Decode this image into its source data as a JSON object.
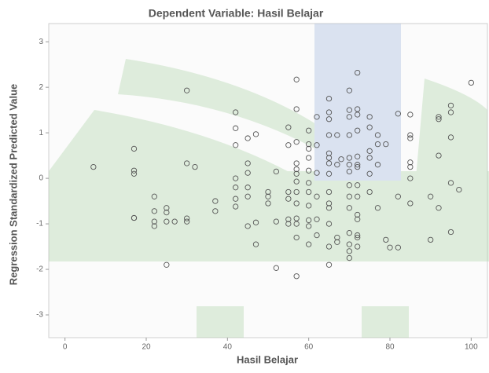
{
  "chart_data": {
    "type": "scatter",
    "title": "Dependent Variable: Hasil Belajar",
    "x_label": "Hasil Belajar",
    "y_label": "Regression Standardized Predicted Value",
    "x": [
      7,
      17,
      17,
      17,
      17,
      17,
      22,
      22,
      22,
      22,
      25,
      25,
      25,
      25,
      27,
      30,
      30,
      30,
      30,
      32,
      37,
      37,
      42,
      42,
      42,
      42,
      42,
      42,
      42,
      45,
      45,
      45,
      45,
      45,
      45,
      47,
      47,
      47,
      50,
      50,
      50,
      52,
      52,
      52,
      55,
      55,
      55,
      55,
      55,
      55,
      57,
      57,
      57,
      57,
      57,
      57,
      57,
      57,
      57,
      57,
      57,
      57,
      57,
      60,
      60,
      60,
      60,
      60,
      60,
      60,
      60,
      60,
      60,
      60,
      62,
      62,
      62,
      62,
      62,
      62,
      65,
      65,
      65,
      65,
      65,
      65,
      65,
      65,
      65,
      65,
      65,
      65,
      65,
      65,
      67,
      67,
      67,
      67,
      68,
      70,
      70,
      70,
      70,
      70,
      70,
      70,
      70,
      70,
      70,
      70,
      70,
      70,
      70,
      72,
      72,
      72,
      72,
      72,
      72,
      72,
      72,
      72,
      72,
      72,
      72,
      72,
      72,
      75,
      75,
      75,
      75,
      75,
      75,
      77,
      77,
      77,
      77,
      79,
      79,
      80,
      82,
      82,
      82,
      85,
      85,
      85,
      85,
      85,
      85,
      85,
      90,
      90,
      92,
      92,
      92,
      92,
      95,
      95,
      95,
      95,
      95,
      97,
      100
    ],
    "values": [
      0.25,
      0.65,
      0.17,
      0.1,
      -0.87,
      -0.87,
      -0.4,
      -0.72,
      -0.95,
      -1.05,
      -0.65,
      -0.75,
      -0.95,
      -1.9,
      -0.95,
      1.93,
      0.33,
      -0.88,
      -0.95,
      0.25,
      -0.5,
      -0.72,
      1.45,
      1.1,
      0.73,
      0,
      -0.2,
      -0.45,
      -0.62,
      0.88,
      0.33,
      0.12,
      -0.2,
      -0.4,
      -1.05,
      0.97,
      -0.97,
      -1.45,
      -0.3,
      -0.4,
      -0.55,
      0.15,
      -0.95,
      -1.97,
      1.12,
      0.73,
      -0.3,
      -0.45,
      -0.9,
      -1.0,
      2.17,
      1.52,
      0.8,
      0.33,
      0.2,
      0.1,
      -0.07,
      -0.3,
      -0.55,
      -0.88,
      -1.0,
      -1.3,
      -2.15,
      1.05,
      0.75,
      0.65,
      0.45,
      0.17,
      -0.1,
      -0.3,
      -0.6,
      -0.92,
      -1.05,
      -1.45,
      1.35,
      0.73,
      0.12,
      -0.4,
      -0.9,
      -1.25,
      1.75,
      1.45,
      1.3,
      0.95,
      0.55,
      0.45,
      0.33,
      0.1,
      -0.3,
      -0.55,
      -0.65,
      -1.0,
      -1.5,
      -1.9,
      0.95,
      0.3,
      -1.3,
      -1.4,
      0.42,
      1.93,
      1.5,
      1.35,
      0.95,
      0.45,
      0.3,
      0.15,
      -0.15,
      -0.4,
      -0.65,
      -1.2,
      -1.45,
      -1.6,
      -1.75,
      2.32,
      1.52,
      1.4,
      1.05,
      0.48,
      0.3,
      0.25,
      -0.15,
      -0.4,
      -0.8,
      -0.9,
      -1.25,
      -1.3,
      -1.5,
      1.35,
      1.12,
      0.6,
      0.45,
      0.1,
      -0.3,
      0.95,
      0.75,
      0.3,
      -0.65,
      0.75,
      -1.35,
      -1.52,
      1.42,
      -0.4,
      -1.52,
      1.4,
      0.95,
      0.88,
      0.35,
      0.25,
      0,
      -0.55,
      -0.4,
      -1.35,
      1.35,
      1.3,
      0.5,
      -0.65,
      1.6,
      1.45,
      0.9,
      -0.1,
      -1.18,
      -0.25,
      2.1
    ],
    "xlim": [
      -4,
      104
    ],
    "ylim": [
      -3.5,
      3.4
    ],
    "xticks": [
      0,
      20,
      40,
      60,
      80,
      100
    ],
    "yticks": [
      -3,
      -2,
      -1,
      0,
      1,
      2,
      3
    ],
    "marker_color": "#555555"
  }
}
